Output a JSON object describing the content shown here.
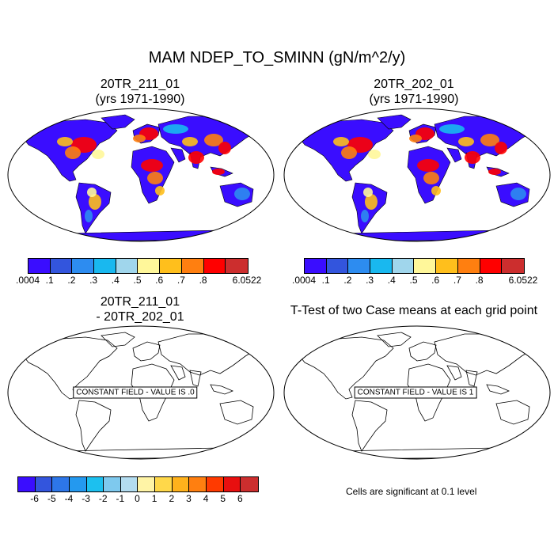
{
  "main_title": "MAM NDEP_TO_SMINN (gN/m^2/y)",
  "panels": [
    {
      "line1": "20TR_211_01",
      "line2": "(yrs 1971-1990)"
    },
    {
      "line1": "20TR_202_01",
      "line2": "(yrs 1971-1990)"
    },
    {
      "line1": "20TR_211_01",
      "line2": "- 20TR_202_01",
      "message": "CONSTANT FIELD - VALUE IS .0"
    },
    {
      "line1": "T-Test of two Case means at each grid point",
      "message": "CONSTANT FIELD - VALUE IS 1"
    }
  ],
  "colorbar_top": {
    "colors": [
      "#3a0dff",
      "#3355dd",
      "#2d8cf0",
      "#19b8ef",
      "#a0d6ec",
      "#fff79a",
      "#ffbf1c",
      "#ff7f10",
      "#ff0000",
      "#cc2e2e"
    ],
    "labels": [
      ".0004",
      ".1",
      ".2",
      ".3",
      ".4",
      ".5",
      ".6",
      ".7",
      ".8",
      "6.0522"
    ]
  },
  "colorbar_diff": {
    "colors": [
      "#3a0dff",
      "#3355dd",
      "#2d76e8",
      "#2499ef",
      "#1cc0ef",
      "#7ec9ee",
      "#b3dcf0",
      "#fff4a6",
      "#ffd84a",
      "#ffb21c",
      "#ff7f10",
      "#ff3a00",
      "#e80f0f",
      "#cc2e2e"
    ],
    "labels": [
      "-6",
      "-5",
      "-4",
      "-3",
      "-2",
      "-1",
      "0",
      "1",
      "2",
      "3",
      "4",
      "5",
      "6"
    ]
  },
  "significance_note": "Cells are significant at 0.1 level"
}
